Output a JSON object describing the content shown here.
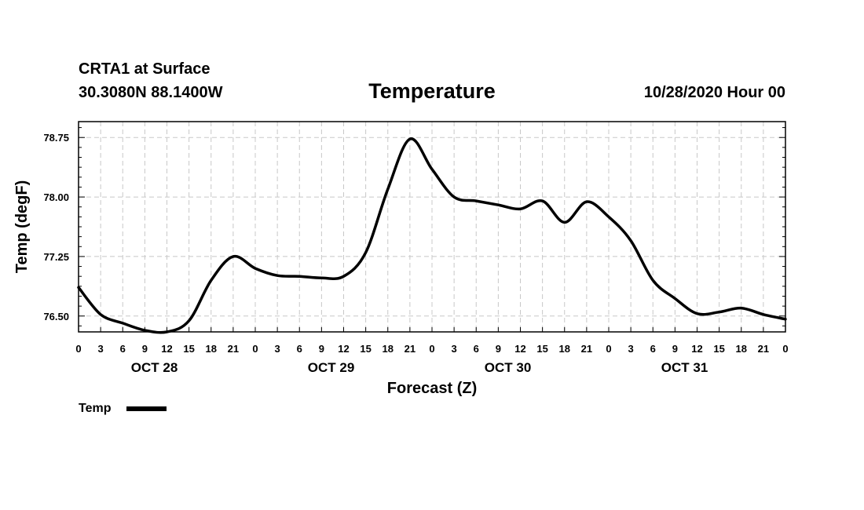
{
  "header": {
    "station": "CRTA1 at Surface",
    "coords": "30.3080N 88.1400W",
    "title": "Temperature",
    "run": "10/28/2020 Hour 00"
  },
  "legend": {
    "label": "Temp",
    "color": "#000000"
  },
  "chart_data": {
    "type": "line",
    "title": "Temperature",
    "xlabel": "Forecast (Z)",
    "ylabel": "Temp (degF)",
    "x_unit": "hours from 10/28/2020 00Z",
    "xlim": [
      0,
      96
    ],
    "ylim": [
      76.3,
      78.95
    ],
    "y_ticks": [
      "76.50",
      "77.25",
      "78.00",
      "78.75"
    ],
    "y_tick_values": [
      76.5,
      77.25,
      78.0,
      78.75
    ],
    "x_tick_labels": [
      "0",
      "3",
      "6",
      "9",
      "12",
      "15",
      "18",
      "21",
      "0",
      "3",
      "6",
      "9",
      "12",
      "15",
      "18",
      "21",
      "0",
      "3",
      "6",
      "9",
      "12",
      "15",
      "18",
      "21",
      "0",
      "3",
      "6",
      "9",
      "12",
      "15",
      "18",
      "21",
      "0"
    ],
    "day_labels": [
      "OCT 28",
      "OCT 29",
      "OCT 30",
      "OCT 31"
    ],
    "grid": true,
    "legend_position": "bottom-left",
    "series": [
      {
        "name": "Temp",
        "color": "#000000",
        "x": [
          0,
          3,
          6,
          9,
          12,
          15,
          18,
          21,
          24,
          27,
          30,
          33,
          36,
          39,
          42,
          45,
          48,
          51,
          54,
          57,
          60,
          63,
          66,
          69,
          72,
          75,
          78,
          81,
          84,
          87,
          90,
          93,
          96
        ],
        "values": [
          76.86,
          76.52,
          76.41,
          76.32,
          76.3,
          76.44,
          76.95,
          77.25,
          77.1,
          77.01,
          77.0,
          76.98,
          77.0,
          77.3,
          78.1,
          78.73,
          78.35,
          78.0,
          77.95,
          77.9,
          77.85,
          77.95,
          77.68,
          77.94,
          77.75,
          77.45,
          76.95,
          76.72,
          76.53,
          76.55,
          76.6,
          76.52,
          76.46
        ]
      }
    ]
  }
}
